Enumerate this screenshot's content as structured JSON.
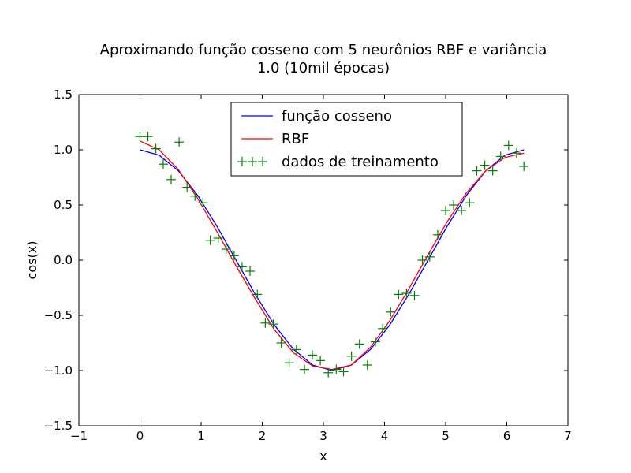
{
  "chart_data": {
    "type": "line",
    "title": [
      "Aproximando função cosseno com 5 neurônios RBF e variância",
      "1.0 (10mil épocas)"
    ],
    "xlabel": "x",
    "ylabel": "cos(x)",
    "xlim": [
      -1,
      7
    ],
    "ylim": [
      -1.5,
      1.5
    ],
    "xticks": [
      -1,
      0,
      1,
      2,
      3,
      4,
      5,
      6,
      7
    ],
    "xtick_labels": [
      "−1",
      "0",
      "1",
      "2",
      "3",
      "4",
      "5",
      "6",
      "7"
    ],
    "yticks": [
      -1.5,
      -1.0,
      -0.5,
      0.0,
      0.5,
      1.0,
      1.5
    ],
    "ytick_labels": [
      "−1.5",
      "−1.0",
      "−0.5",
      "0.0",
      "0.5",
      "1.0",
      "1.5"
    ],
    "grid": false,
    "legend": {
      "placement": "top-center",
      "entries": [
        {
          "label": "função cosseno",
          "color": "#0000ff",
          "style": "line"
        },
        {
          "label": "RBF",
          "color": "#ff0000",
          "style": "line"
        },
        {
          "label": "dados de treinamento",
          "color": "#008000",
          "style": "marker"
        }
      ]
    },
    "series": [
      {
        "name": "função cosseno",
        "color": "#0000ff",
        "kind": "line",
        "x": [
          0.0,
          0.314,
          0.628,
          0.942,
          1.257,
          1.571,
          1.885,
          2.199,
          2.513,
          2.827,
          3.142,
          3.456,
          3.77,
          4.084,
          4.398,
          4.712,
          5.027,
          5.341,
          5.655,
          5.969,
          6.283
        ],
        "y": [
          1.0,
          0.951,
          0.809,
          0.588,
          0.309,
          0.0,
          -0.309,
          -0.588,
          -0.809,
          -0.951,
          -1.0,
          -0.951,
          -0.809,
          -0.588,
          -0.309,
          0.0,
          0.309,
          0.588,
          0.809,
          0.951,
          1.0
        ]
      },
      {
        "name": "RBF",
        "color": "#ff0000",
        "kind": "line",
        "x": [
          0.0,
          0.314,
          0.628,
          0.942,
          1.257,
          1.571,
          1.885,
          2.199,
          2.513,
          2.827,
          3.142,
          3.456,
          3.77,
          4.084,
          4.398,
          4.712,
          5.027,
          5.341,
          5.655,
          5.969,
          6.283
        ],
        "y": [
          1.08,
          1.0,
          0.82,
          0.56,
          0.26,
          -0.05,
          -0.35,
          -0.63,
          -0.84,
          -0.96,
          -0.99,
          -0.95,
          -0.79,
          -0.55,
          -0.26,
          0.05,
          0.35,
          0.61,
          0.81,
          0.93,
          0.97
        ]
      },
      {
        "name": "dados de treinamento",
        "color": "#008000",
        "kind": "scatter",
        "x": [
          0.0,
          0.13,
          0.26,
          0.38,
          0.51,
          0.64,
          0.77,
          0.9,
          1.03,
          1.15,
          1.28,
          1.41,
          1.54,
          1.67,
          1.8,
          1.92,
          2.05,
          2.18,
          2.31,
          2.44,
          2.56,
          2.69,
          2.82,
          2.95,
          3.08,
          3.21,
          3.33,
          3.46,
          3.59,
          3.72,
          3.85,
          3.97,
          4.1,
          4.23,
          4.36,
          4.49,
          4.62,
          4.74,
          4.87,
          5.0,
          5.13,
          5.26,
          5.39,
          5.51,
          5.64,
          5.77,
          5.9,
          6.03,
          6.16,
          6.28
        ],
        "y": [
          1.12,
          1.12,
          1.01,
          0.87,
          0.73,
          1.07,
          0.66,
          0.58,
          0.52,
          0.18,
          0.2,
          0.1,
          0.04,
          -0.06,
          -0.1,
          -0.31,
          -0.57,
          -0.58,
          -0.75,
          -0.93,
          -0.81,
          -0.99,
          -0.86,
          -0.91,
          -1.02,
          -0.99,
          -1.01,
          -0.87,
          -0.76,
          -0.95,
          -0.74,
          -0.62,
          -0.47,
          -0.31,
          -0.3,
          -0.32,
          0.0,
          0.03,
          0.23,
          0.45,
          0.5,
          0.45,
          0.52,
          0.81,
          0.86,
          0.81,
          0.94,
          1.04,
          0.97,
          0.85
        ]
      }
    ]
  }
}
